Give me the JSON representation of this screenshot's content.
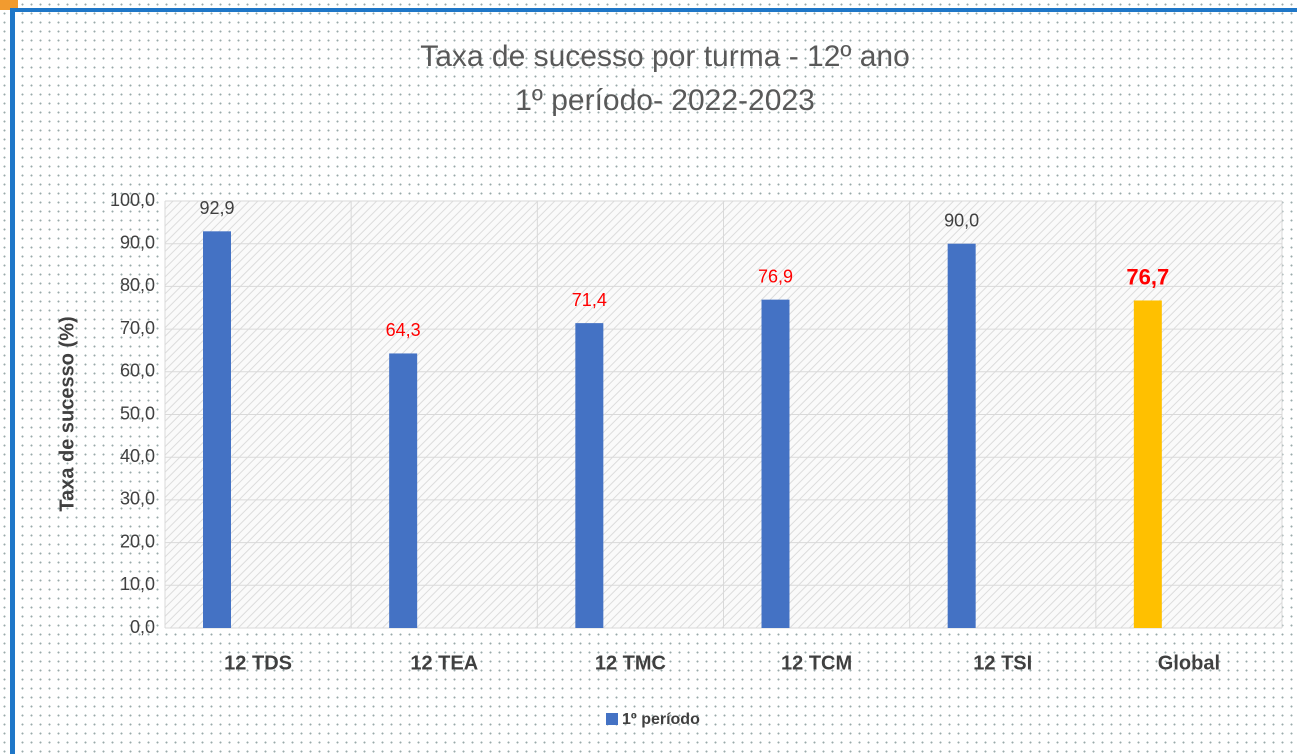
{
  "chart_data": {
    "type": "bar",
    "title": "Taxa de sucesso por turma - 12º ano",
    "subtitle": "1º período- 2022-2023",
    "y_label": "Taxa de sucesso (%)",
    "categories": [
      "12 TDS",
      "12 TEA",
      "12 TMC",
      "12 TCM",
      "12 TSI",
      "Global"
    ],
    "series": [
      {
        "name": "1º período",
        "color": "#4472c4",
        "values": [
          92.9,
          64.3,
          71.4,
          76.9,
          90.0,
          76.7
        ],
        "value_labels": [
          "92,9",
          "64,3",
          "71,4",
          "76,9",
          "90,0",
          "76,7"
        ],
        "colors": [
          "#4472c4",
          "#4472c4",
          "#4472c4",
          "#4472c4",
          "#4472c4",
          "#ffc000"
        ],
        "label_colors": [
          "#404040",
          "#ff0000",
          "#ff0000",
          "#ff0000",
          "#404040",
          "#ff0000"
        ]
      }
    ],
    "ylim": [
      0,
      100
    ],
    "yticks": [
      {
        "value": 0,
        "label": "0,0"
      },
      {
        "value": 10,
        "label": "10,0"
      },
      {
        "value": 20,
        "label": "20,0"
      },
      {
        "value": 30,
        "label": "30,0"
      },
      {
        "value": 40,
        "label": "40,0"
      },
      {
        "value": 50,
        "label": "50,0"
      },
      {
        "value": 60,
        "label": "60,0"
      },
      {
        "value": 70,
        "label": "70,0"
      },
      {
        "value": 80,
        "label": "80,0"
      },
      {
        "value": 90,
        "label": "90,0"
      },
      {
        "value": 100,
        "label": "100,0"
      }
    ],
    "grid": true,
    "legend": "bottom"
  }
}
